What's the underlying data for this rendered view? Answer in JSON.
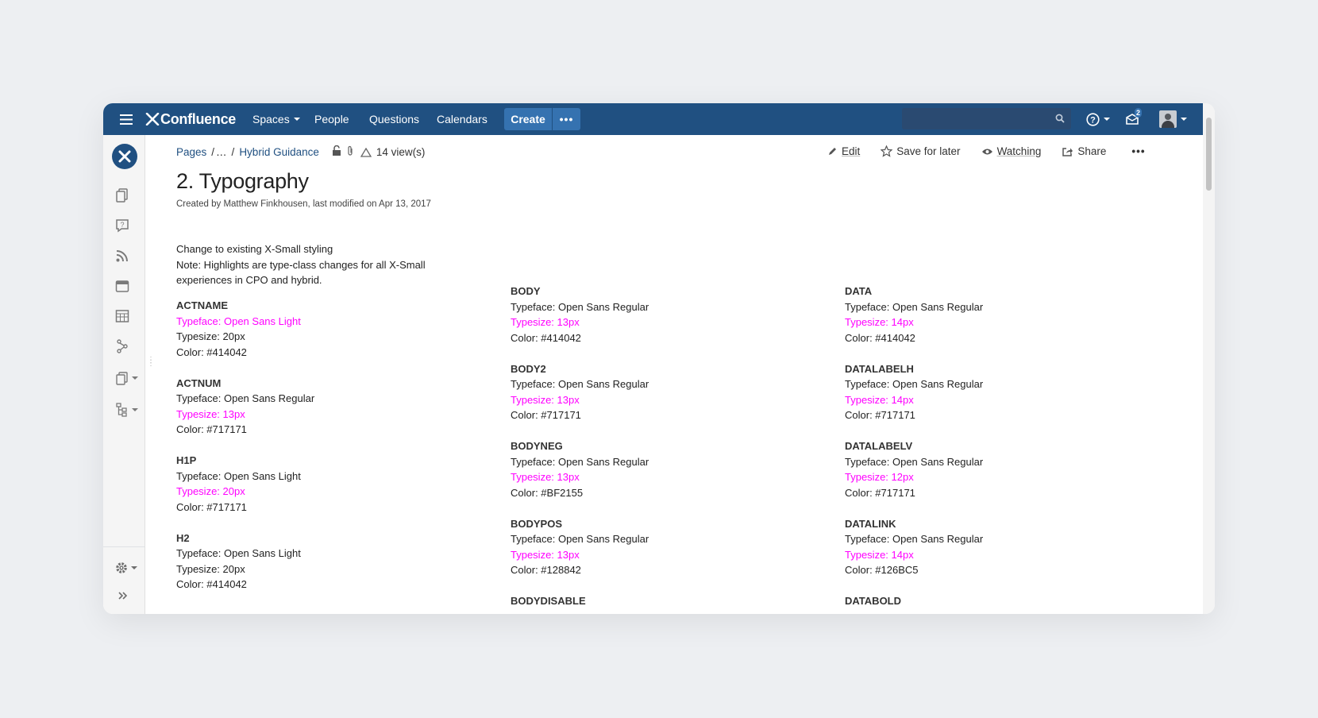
{
  "nav": {
    "logo": "Confluence",
    "spaces": "Spaces",
    "people": "People",
    "questions": "Questions",
    "calendars": "Calendars",
    "create": "Create",
    "more": "•••",
    "notification_count": "2"
  },
  "breadcrumb": {
    "pages": "Pages",
    "ellipsis": "…",
    "parent": "Hybrid Guidance",
    "views": "14 view(s)"
  },
  "actions": {
    "edit": "Edit",
    "save_for_later": "Save for later",
    "watching": "Watching",
    "share": "Share",
    "more": "•••"
  },
  "page": {
    "title": "2. Typography",
    "meta": "Created by Matthew Finkhousen, last modified on Apr 13, 2017",
    "intro_1": "Change to existing X-Small styling",
    "intro_2": "Note: Highlights are type-class changes for all X-Small experiences in CPO and hybrid."
  },
  "colors": {
    "nav_bg": "#205081",
    "highlight": "#ff00ff",
    "text": "#222222",
    "link": "#205081"
  },
  "columns": [
    [
      {
        "name": "ACTNAME",
        "lines": [
          {
            "t": "Typeface: Open Sans Light",
            "hl": true
          },
          {
            "t": "Typesize: 20px",
            "hl": false
          },
          {
            "t": "Color: #414042",
            "hl": false
          }
        ]
      },
      {
        "name": "ACTNUM",
        "lines": [
          {
            "t": "Typeface: Open Sans Regular",
            "hl": false
          },
          {
            "t": "Typesize: 13px",
            "hl": true
          },
          {
            "t": "Color: #717171",
            "hl": false
          }
        ]
      },
      {
        "name": "H1P",
        "lines": [
          {
            "t": "Typeface: Open Sans Light",
            "hl": false
          },
          {
            "t": "Typesize: 20px",
            "hl": true
          },
          {
            "t": "Color: #717171",
            "hl": false
          }
        ]
      },
      {
        "name": "H2",
        "lines": [
          {
            "t": "Typeface: Open Sans Light",
            "hl": false
          },
          {
            "t": "Typesize: 20px",
            "hl": false
          },
          {
            "t": "Color: #414042",
            "hl": false
          }
        ]
      }
    ],
    [
      {
        "name": "BODY",
        "lines": [
          {
            "t": "Typeface: Open Sans Regular",
            "hl": false
          },
          {
            "t": "Typesize: 13px",
            "hl": true
          },
          {
            "t": "Color: #414042",
            "hl": false
          }
        ]
      },
      {
        "name": "BODY2",
        "lines": [
          {
            "t": "Typeface: Open Sans Regular",
            "hl": false
          },
          {
            "t": "Typesize: 13px",
            "hl": true
          },
          {
            "t": "Color: #717171",
            "hl": false
          }
        ]
      },
      {
        "name": "BODYNEG",
        "lines": [
          {
            "t": "Typeface: Open Sans Regular",
            "hl": false
          },
          {
            "t": "Typesize: 13px",
            "hl": true
          },
          {
            "t": "Color: #BF2155",
            "hl": false
          }
        ]
      },
      {
        "name": "BODYPOS",
        "lines": [
          {
            "t": "Typeface: Open Sans Regular",
            "hl": false
          },
          {
            "t": "Typesize: 13px",
            "hl": true
          },
          {
            "t": "Color: #128842",
            "hl": false
          }
        ]
      },
      {
        "name": "BODYDISABLE",
        "lines": []
      }
    ],
    [
      {
        "name": "DATA",
        "lines": [
          {
            "t": "Typeface: Open Sans Regular",
            "hl": false
          },
          {
            "t": "Typesize: 14px",
            "hl": true
          },
          {
            "t": "Color: #414042",
            "hl": false
          }
        ]
      },
      {
        "name": "DATALABELH",
        "lines": [
          {
            "t": "Typeface: Open Sans Regular",
            "hl": false
          },
          {
            "t": "Typesize: 14px",
            "hl": true
          },
          {
            "t": "Color: #717171",
            "hl": false
          }
        ]
      },
      {
        "name": "DATALABELV",
        "lines": [
          {
            "t": "Typeface: Open Sans Regular",
            "hl": false
          },
          {
            "t": "Typesize: 12px",
            "hl": true
          },
          {
            "t": "Color: #717171",
            "hl": false
          }
        ]
      },
      {
        "name": "DATALINK",
        "lines": [
          {
            "t": "Typeface: Open Sans Regular",
            "hl": false
          },
          {
            "t": "Typesize: 14px",
            "hl": true
          },
          {
            "t": "Color: #126BC5",
            "hl": false
          }
        ]
      },
      {
        "name": "DATABOLD",
        "lines": []
      }
    ]
  ]
}
